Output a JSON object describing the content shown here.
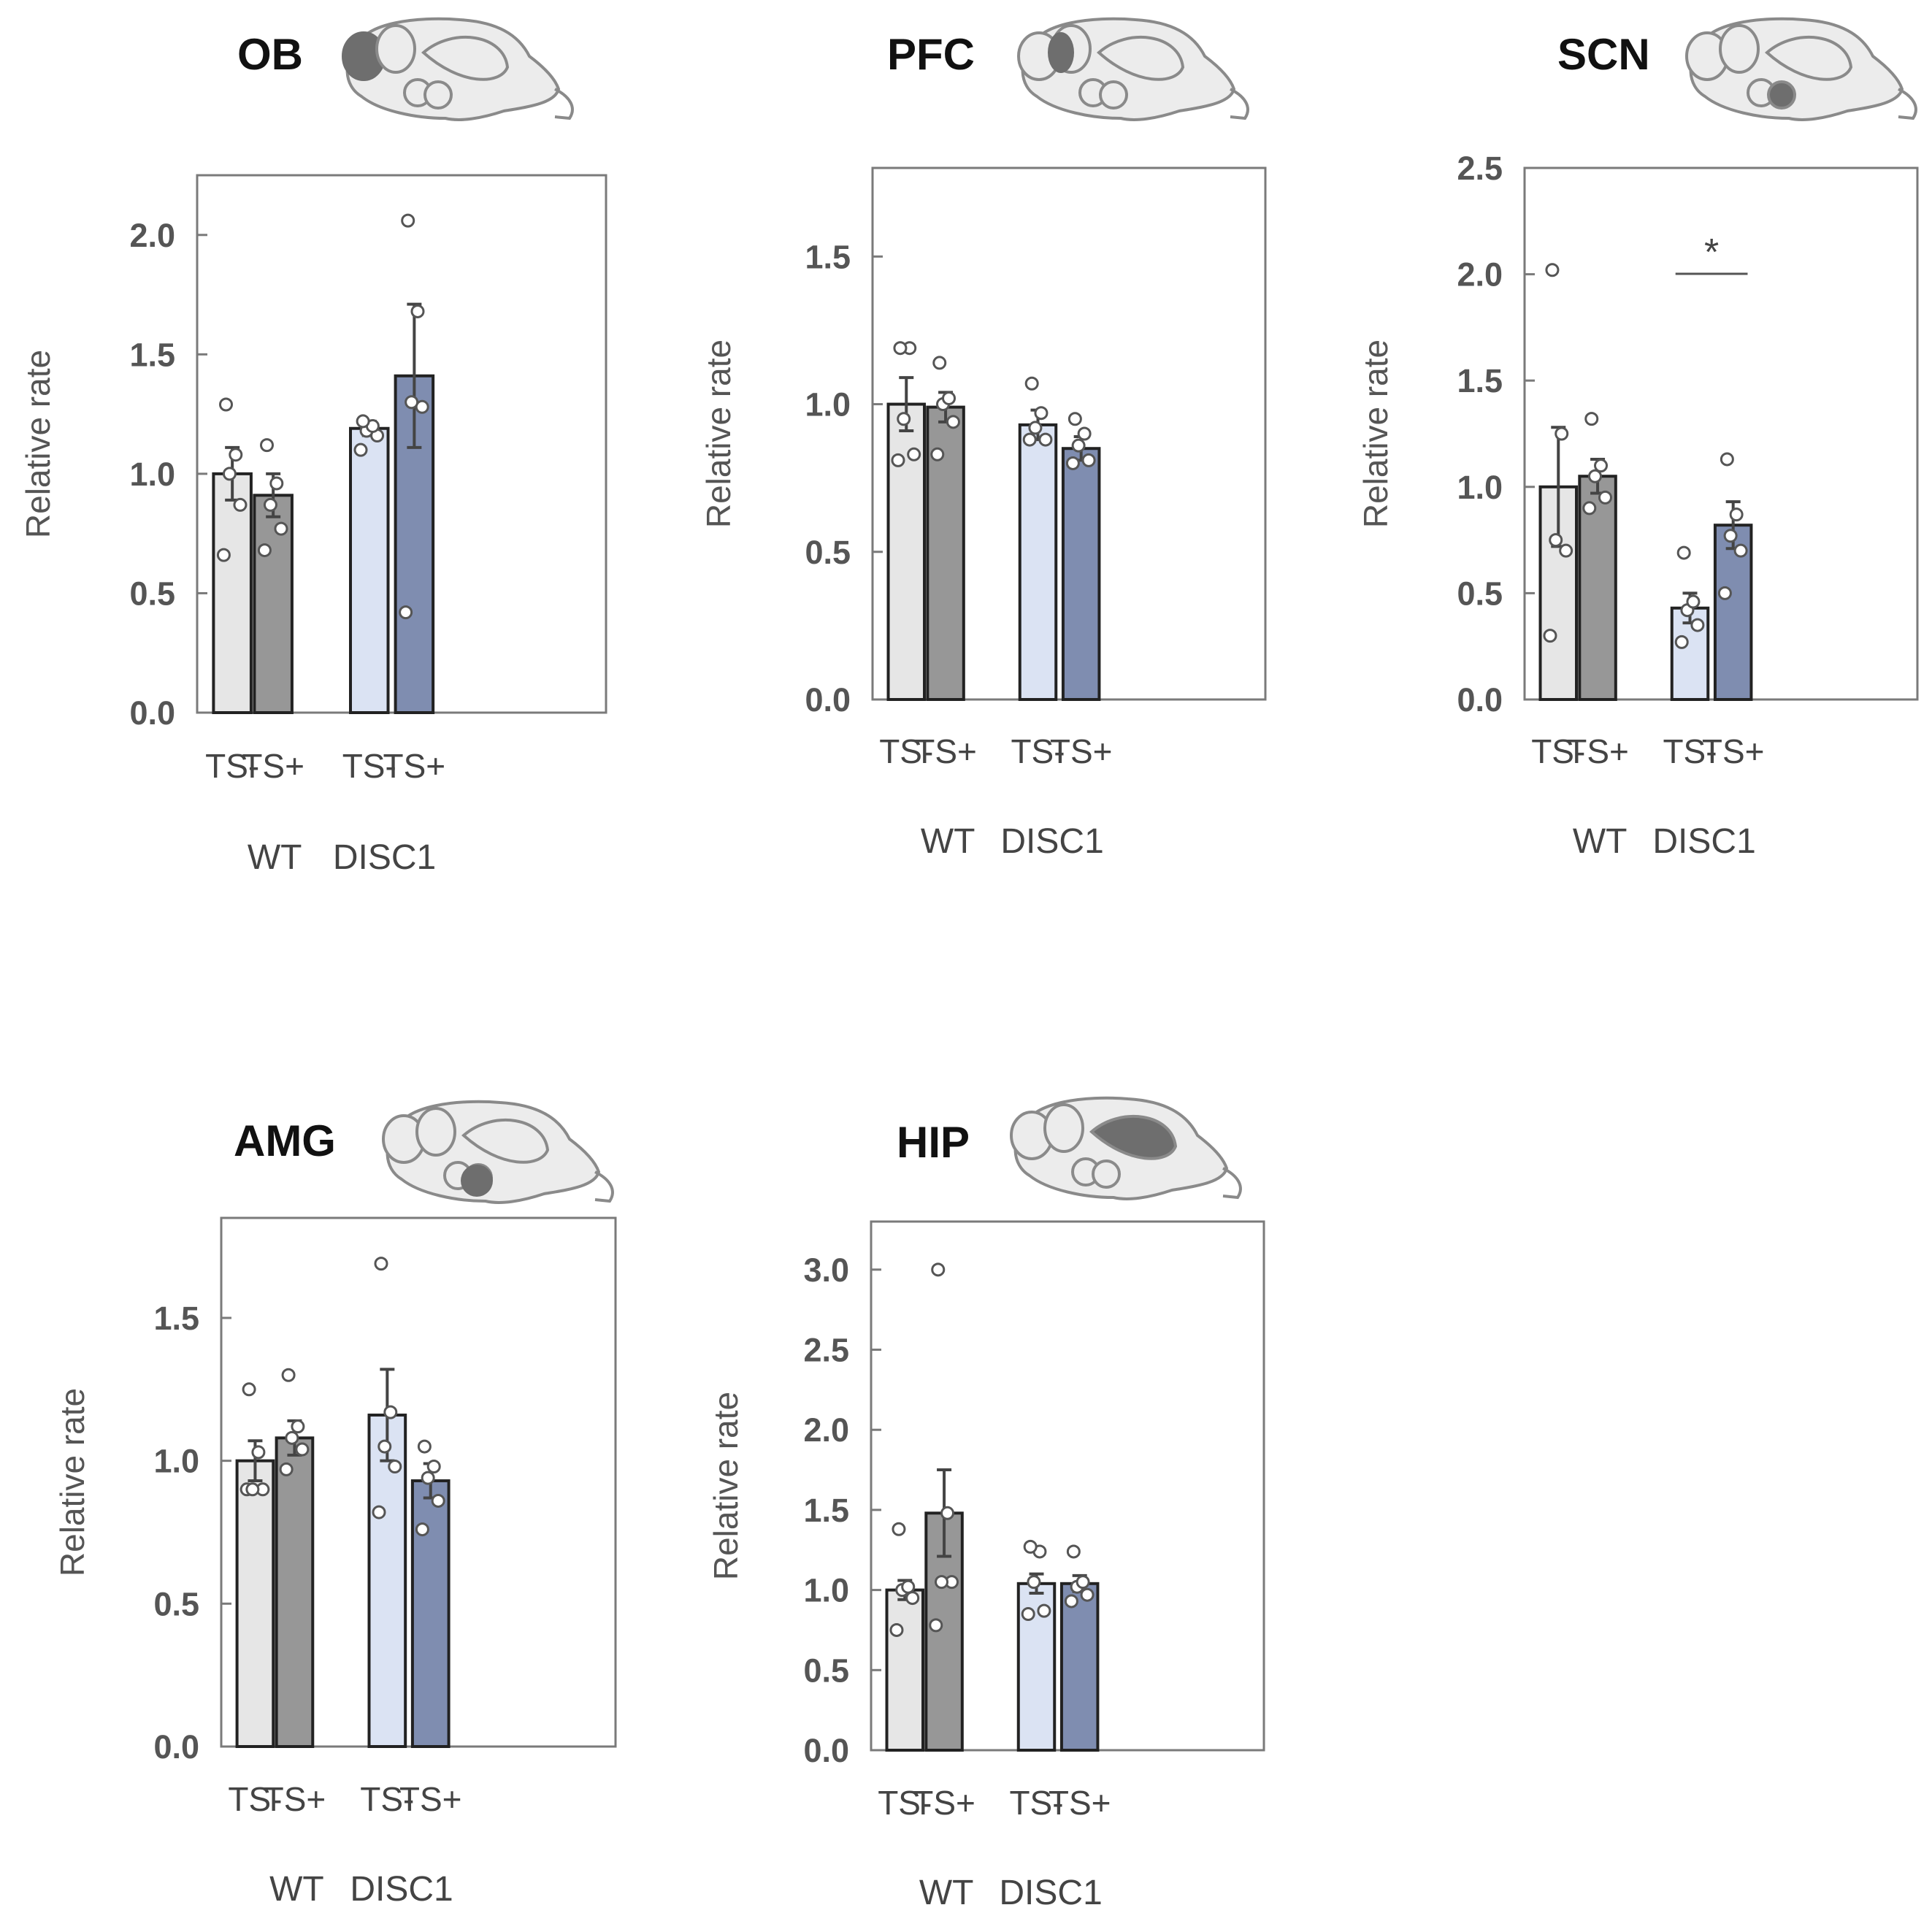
{
  "colors": {
    "wt_ts_minus": "#e6e6e6",
    "wt_ts_plus": "#979797",
    "disc1_ts_minus": "#dbe3f3",
    "disc1_ts_plus": "#7f8db0",
    "axis": "#7a7a7a",
    "outline": "#222222",
    "error": "#444444"
  },
  "chart_data": [
    {
      "type": "bar",
      "title": "OB",
      "region_icon": "brain-ob-highlight",
      "ylabel": "Relative rate",
      "ylim": [
        0,
        2.25
      ],
      "yticks": [
        "0.0",
        "0.5",
        "1.0",
        "1.5",
        "2.0"
      ],
      "categories": [
        "TS-",
        "TS+",
        "TS-",
        "TS+"
      ],
      "groups": [
        "WT",
        "DISC1"
      ],
      "values": [
        1.0,
        0.91,
        1.19,
        1.41
      ],
      "errors": [
        0.11,
        0.09,
        0.03,
        0.3
      ],
      "points": [
        [
          0.66,
          0.87,
          1.0,
          1.08,
          1.29
        ],
        [
          0.68,
          0.77,
          0.87,
          0.96,
          1.12
        ],
        [
          1.1,
          1.16,
          1.18,
          1.2,
          1.22
        ],
        [
          0.42,
          1.28,
          1.3,
          1.68,
          2.06
        ]
      ],
      "significance": null
    },
    {
      "type": "bar",
      "title": "PFC",
      "region_icon": "brain-pfc-highlight",
      "ylabel": "Relative rate",
      "ylim": [
        0,
        1.8
      ],
      "yticks": [
        "0.0",
        "0.5",
        "1.0",
        "1.5"
      ],
      "categories": [
        "TS-",
        "TS+",
        "TS-",
        "TS+"
      ],
      "groups": [
        "WT",
        "DISC1"
      ],
      "values": [
        1.0,
        0.99,
        0.93,
        0.85
      ],
      "errors": [
        0.09,
        0.05,
        0.05,
        0.04
      ],
      "points": [
        [
          0.81,
          0.83,
          0.95,
          1.19,
          1.19
        ],
        [
          0.83,
          0.94,
          1.0,
          1.02,
          1.14
        ],
        [
          0.88,
          0.88,
          0.92,
          0.97,
          1.07
        ],
        [
          0.8,
          0.81,
          0.86,
          0.9,
          0.95
        ]
      ],
      "significance": null
    },
    {
      "type": "bar",
      "title": "SCN",
      "region_icon": "brain-scn-highlight",
      "ylabel": "Relative rate",
      "ylim": [
        0,
        2.5
      ],
      "yticks": [
        "0.0",
        "0.5",
        "1.0",
        "1.5",
        "2.0",
        "2.5"
      ],
      "categories": [
        "TS-",
        "TS+",
        "TS-",
        "TS+"
      ],
      "groups": [
        "WT",
        "DISC1"
      ],
      "values": [
        1.0,
        1.05,
        0.43,
        0.82
      ],
      "errors": [
        0.28,
        0.08,
        0.07,
        0.11
      ],
      "points": [
        [
          0.3,
          0.7,
          0.75,
          1.25,
          2.02
        ],
        [
          0.9,
          0.95,
          1.05,
          1.1,
          1.32
        ],
        [
          0.27,
          0.35,
          0.42,
          0.46,
          0.69
        ],
        [
          0.5,
          0.7,
          0.77,
          0.87,
          1.13
        ]
      ],
      "significance": {
        "label": "*",
        "from": 2,
        "to": 3
      }
    },
    {
      "type": "bar",
      "title": "AMG",
      "region_icon": "brain-amg-highlight",
      "ylabel": "Relative rate",
      "ylim": [
        0,
        1.85
      ],
      "yticks": [
        "0.0",
        "0.5",
        "1.0",
        "1.5"
      ],
      "categories": [
        "TS-",
        "TS+",
        "TS-",
        "TS+"
      ],
      "groups": [
        "WT",
        "DISC1"
      ],
      "values": [
        1.0,
        1.08,
        1.16,
        0.93
      ],
      "errors": [
        0.07,
        0.06,
        0.16,
        0.06
      ],
      "points": [
        [
          0.9,
          0.9,
          0.9,
          1.03,
          1.25
        ],
        [
          0.97,
          1.04,
          1.08,
          1.12,
          1.3
        ],
        [
          0.82,
          0.98,
          1.05,
          1.17,
          1.69
        ],
        [
          0.76,
          0.86,
          0.94,
          0.98,
          1.05
        ]
      ],
      "significance": null
    },
    {
      "type": "bar",
      "title": "HIP",
      "region_icon": "brain-hip-highlight",
      "ylabel": "Relative rate",
      "ylim": [
        0,
        3.3
      ],
      "yticks": [
        "0.0",
        "0.5",
        "1.0",
        "1.5",
        "2.0",
        "2.5",
        "3.0"
      ],
      "categories": [
        "TS-",
        "TS+",
        "TS-",
        "TS+"
      ],
      "groups": [
        "WT",
        "DISC1"
      ],
      "values": [
        1.0,
        1.48,
        1.04,
        1.04
      ],
      "errors": [
        0.06,
        0.27,
        0.06,
        0.05
      ],
      "points": [
        [
          0.75,
          0.95,
          1.0,
          1.02,
          1.38
        ],
        [
          0.78,
          1.05,
          1.05,
          1.48,
          3.0
        ],
        [
          0.85,
          0.87,
          1.05,
          1.24,
          1.27
        ],
        [
          0.93,
          0.97,
          1.02,
          1.05,
          1.24
        ]
      ],
      "significance": null
    }
  ]
}
